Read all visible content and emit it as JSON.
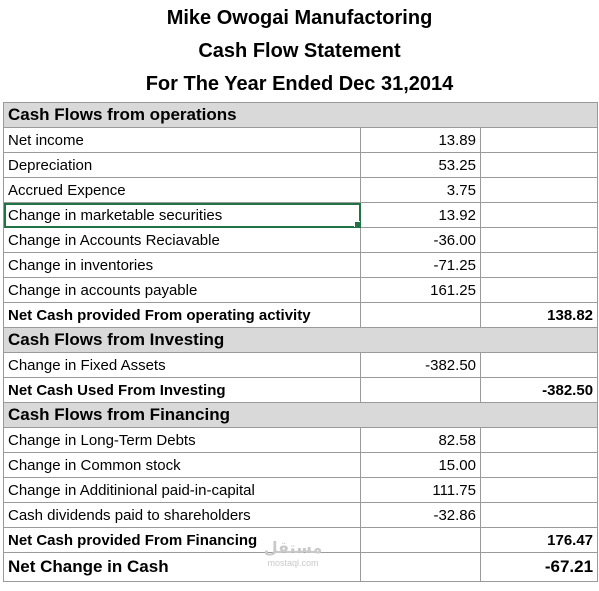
{
  "header": {
    "company": "Mike Owogai Manufactoring",
    "statement": "Cash Flow Statement",
    "period": "For The Year Ended Dec 31,2014"
  },
  "operations": {
    "heading": "Cash Flows from operations",
    "rows": [
      {
        "label": "Net income",
        "amount": "13.89"
      },
      {
        "label": "Depreciation",
        "amount": "53.25"
      },
      {
        "label": "Accrued Expence",
        "amount": "3.75"
      },
      {
        "label": "Change in marketable securities",
        "amount": "13.92"
      },
      {
        "label": "Change in Accounts Reciavable",
        "amount": "-36.00"
      },
      {
        "label": "Change in inventories",
        "amount": "-71.25"
      },
      {
        "label": "Change in accounts payable",
        "amount": "161.25"
      }
    ],
    "total_label": "Net Cash provided From operating activity",
    "total_value": "138.82"
  },
  "investing": {
    "heading": "Cash Flows from Investing",
    "rows": [
      {
        "label": "Change in Fixed Assets",
        "amount": "-382.50"
      }
    ],
    "total_label": "Net Cash Used From Investing",
    "total_value": "-382.50"
  },
  "financing": {
    "heading": "Cash Flows from Financing",
    "rows": [
      {
        "label": "Change in Long-Term Debts",
        "amount": "82.58"
      },
      {
        "label": "Change in Common stock",
        "amount": "15.00"
      },
      {
        "label": "Change in Additinional paid-in-capital",
        "amount": "111.75"
      },
      {
        "label": "Cash dividends paid to shareholders",
        "amount": "-32.86"
      }
    ],
    "total_label": "Net Cash provided From Financing",
    "total_value": "176.47"
  },
  "net_change": {
    "label": "Net Change in Cash",
    "value": "-67.21"
  },
  "watermark": {
    "logo": "مستقل",
    "url": "mostaql.com"
  },
  "colors": {
    "section_fill": "#d9d9d9",
    "grid_line": "#9a9a9a",
    "selection": "#217346"
  }
}
